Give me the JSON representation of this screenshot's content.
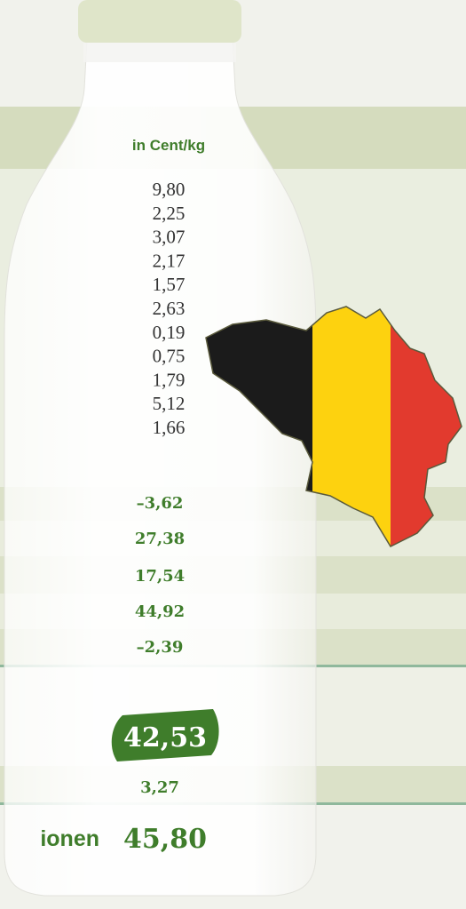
{
  "header": {
    "unit": "in Cent/kg"
  },
  "values": [
    "9,80",
    "2,25",
    "3,07",
    "2,17",
    "1,57",
    "2,63",
    "0,19",
    "0,75",
    "1,79",
    "5,12",
    "1,66"
  ],
  "subtotals": [
    "–3,62",
    "27,38",
    "17,54",
    "44,92",
    "–2,39"
  ],
  "highlight": "42,53",
  "addition": "3,27",
  "final": {
    "label": "ionen",
    "value": "45,80"
  }
}
